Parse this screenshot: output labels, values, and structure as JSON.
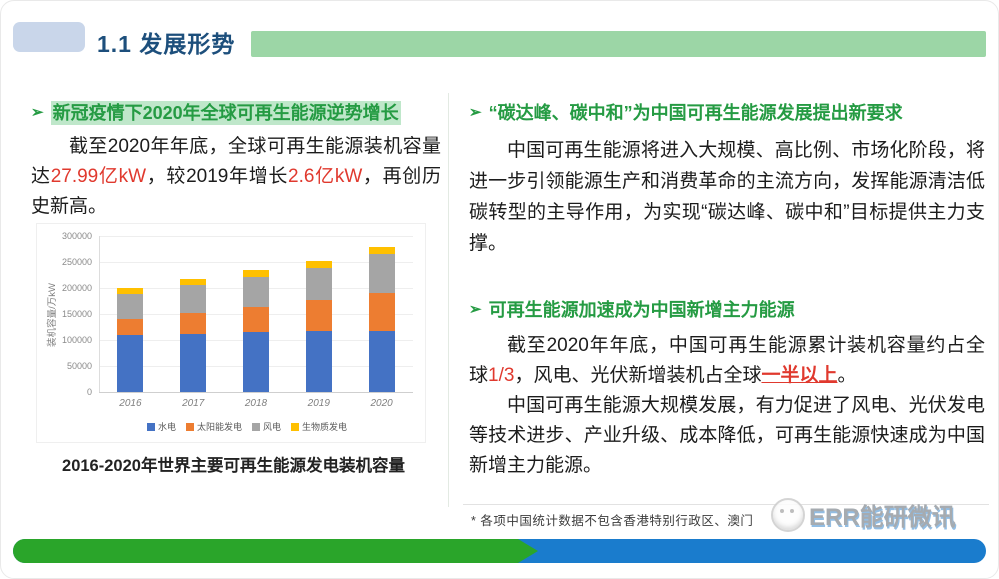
{
  "header": {
    "title": "1.1 发展形势"
  },
  "ui": {
    "bullet": "➢"
  },
  "left": {
    "heading": "新冠疫情下2020年全球可再生能源逆势增长",
    "paragraph_runs": [
      {
        "text": "截至2020年年底，全球可再生能源装机容量达",
        "style": "normal"
      },
      {
        "text": "27.99亿kW",
        "style": "red"
      },
      {
        "text": "，较2019年增长",
        "style": "normal"
      },
      {
        "text": "2.6亿kW",
        "style": "red"
      },
      {
        "text": "，再创历史新高。",
        "style": "normal"
      }
    ],
    "chart_caption": "2016-2020年世界主要可再生能源发电装机容量"
  },
  "right": {
    "section1": {
      "heading": "“碳达峰、碳中和”为中国可再生能源发展提出新要求",
      "paragraph": "中国可再生能源将进入大规模、高比例、市场化阶段，将进一步引领能源生产和消费革命的主流方向，发挥能源清洁低碳转型的主导作用，为实现“碳达峰、碳中和”目标提供主力支撑。"
    },
    "section2": {
      "heading": "可再生能源加速成为中国新增主力能源",
      "paragraph1_runs": [
        {
          "text": "截至2020年年底，中国可再生能源累计装机容量约占全球",
          "style": "normal"
        },
        {
          "text": "1/3",
          "style": "red"
        },
        {
          "text": "，风电、光伏新增装机占全球",
          "style": "normal"
        },
        {
          "text": "一半以上",
          "style": "red-underline"
        },
        {
          "text": "。",
          "style": "normal"
        }
      ],
      "paragraph2": "中国可再生能源大规模发展，有力促进了风电、光伏发电等技术进步、产业升级、成本降低，可再生能源快速成为中国新增主力能源。"
    }
  },
  "footer": {
    "footnote": "* 各项中国统计数据不包含香港特别行政区、澳门",
    "watermark": "ERR能研微讯"
  },
  "chart_data": {
    "type": "bar",
    "stacked": true,
    "title": "",
    "xlabel": "",
    "ylabel": "装机容量/万kW",
    "categories": [
      "2016",
      "2017",
      "2018",
      "2019",
      "2020"
    ],
    "series": [
      {
        "name": "水电",
        "color": "#4472c4",
        "values": [
          110000,
          112000,
          115000,
          117000,
          118000
        ]
      },
      {
        "name": "太阳能发电",
        "color": "#ed7d31",
        "values": [
          31000,
          40000,
          49000,
          60000,
          73000
        ]
      },
      {
        "name": "风电",
        "color": "#a5a5a5",
        "values": [
          48000,
          53000,
          58000,
          62000,
          74000
        ]
      },
      {
        "name": "生物质发电",
        "color": "#ffc000",
        "values": [
          11000,
          12000,
          13000,
          13000,
          13000
        ]
      }
    ],
    "ylim": [
      0,
      300000
    ],
    "yticks": [
      0,
      50000,
      100000,
      150000,
      200000,
      250000,
      300000
    ],
    "grid": true,
    "legend_position": "bottom"
  },
  "colors": {
    "accent_green": "#259b43",
    "heading_highlight": "#bfe7ca",
    "title_navy": "#1d4f7c",
    "emphasis_red": "#e0392e",
    "footer_bar_green": "#2aa52a",
    "footer_bar_blue": "#1a7ccd",
    "header_pill_blue": "#c9d6ea",
    "header_band_green": "#9cd6a6"
  }
}
